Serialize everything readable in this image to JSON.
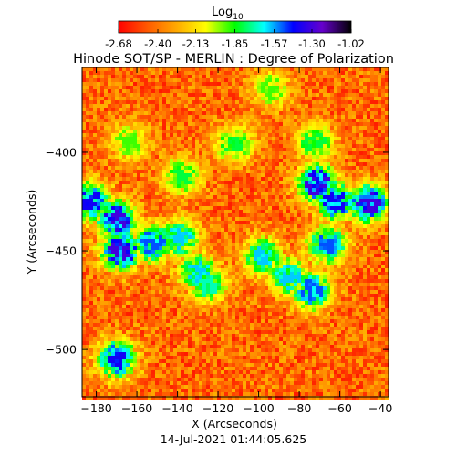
{
  "chart_data": {
    "type": "heatmap",
    "title": "Hinode SOT/SP - MERLIN : Degree of Polarization",
    "xlabel": "X (Arcseconds)",
    "ylabel": "Y (Arcseconds)",
    "timestamp": "14-Jul-2021 01:44:05.625",
    "xlim": [
      -187,
      -36
    ],
    "ylim": [
      -524,
      -357
    ],
    "x_ticks": [
      -180,
      -160,
      -140,
      -120,
      -100,
      -80,
      -60,
      -40
    ],
    "y_ticks": [
      -400,
      -450,
      -500
    ],
    "colorbar": {
      "label_main": "Log",
      "label_sub": "10",
      "range": [
        -2.68,
        -1.02
      ],
      "ticks": [
        "-2.68",
        "-2.40",
        "-2.13",
        "-1.85",
        "-1.57",
        "-1.30",
        "-1.02"
      ],
      "colormap": [
        "#ff0000",
        "#ff5a00",
        "#ffaa00",
        "#ffff00",
        "#00ff00",
        "#00ffff",
        "#0000ff",
        "#6600cc",
        "#000000"
      ]
    },
    "strong_polarization_regions": [
      {
        "x": -183,
        "y": -425,
        "level": -1.4
      },
      {
        "x": -170,
        "y": -434,
        "level": -1.3
      },
      {
        "x": -168,
        "y": -450,
        "level": -1.3
      },
      {
        "x": -152,
        "y": -446,
        "level": -1.5
      },
      {
        "x": -139,
        "y": -444,
        "level": -1.6
      },
      {
        "x": -130,
        "y": -461,
        "level": -1.6
      },
      {
        "x": -125,
        "y": -467,
        "level": -1.7
      },
      {
        "x": -170,
        "y": -505,
        "level": -1.4
      },
      {
        "x": -98,
        "y": -453,
        "level": -1.6
      },
      {
        "x": -85,
        "y": -463,
        "level": -1.6
      },
      {
        "x": -74,
        "y": -470,
        "level": -1.5
      },
      {
        "x": -71,
        "y": -416,
        "level": -1.3
      },
      {
        "x": -62,
        "y": -425,
        "level": -1.4
      },
      {
        "x": -46,
        "y": -426,
        "level": -1.3
      },
      {
        "x": -66,
        "y": -447,
        "level": -1.5
      },
      {
        "x": -72,
        "y": -395,
        "level": -1.8
      },
      {
        "x": -94,
        "y": -368,
        "level": -1.9
      },
      {
        "x": -112,
        "y": -396,
        "level": -1.8
      },
      {
        "x": -164,
        "y": -395,
        "level": -1.9
      },
      {
        "x": -138,
        "y": -412,
        "level": -1.8
      }
    ]
  }
}
